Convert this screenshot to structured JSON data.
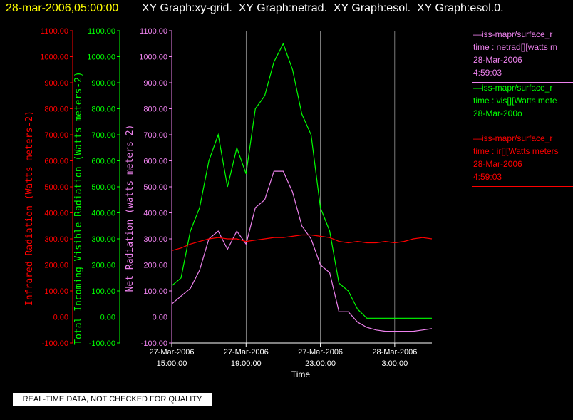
{
  "header": {
    "timestamp": "28-mar-2006,05:00:00",
    "title": "XY Graph:xy-grid.  XY Graph:netrad.  XY Graph:esol.  XY Graph:esol.0.",
    "timestamp_color": "#ffff00",
    "title_color": "#ffffff"
  },
  "legend": [
    {
      "lines": [
        "—iss-mapr/surface_r",
        "time : netrad[][watts m",
        "28-Mar-2006",
        "4:59:03"
      ],
      "color": "#ee82ee"
    },
    {
      "lines": [
        "—iss-mapr/surface_r",
        "time : vis[][Watts mete",
        "28-Mar-200o"
      ],
      "color": "#00ff00"
    },
    {
      "lines": [
        "—iss-mapr/surface_r",
        "time : ir[][Watts meters",
        "28-Mar-2006",
        "4:59:03"
      ],
      "color": "#ff0000"
    }
  ],
  "notice": "REAL-TIME DATA, NOT CHECKED FOR QUALITY",
  "chart_data": {
    "type": "line",
    "xlabel": "Time",
    "x_ticks": [
      {
        "value": 15,
        "label": [
          "27-Mar-2006",
          "15:00:00"
        ]
      },
      {
        "value": 19,
        "label": [
          "27-Mar-2006",
          "19:00:00"
        ]
      },
      {
        "value": 23,
        "label": [
          "27-Mar-2006",
          "23:00:00"
        ]
      },
      {
        "value": 27,
        "label": [
          "28-Mar-2006",
          "3:00:00"
        ]
      }
    ],
    "xlim": [
      15,
      29
    ],
    "grid": "vertical",
    "axes": [
      {
        "id": "ir",
        "ylabel": "Infrared Radiation (Watts meters-2)",
        "color": "#ff0000",
        "ylim": [
          -100,
          1100
        ]
      },
      {
        "id": "vis",
        "ylabel": "Total Incoming Visible Radiation (Watts meters-2)",
        "color": "#00ff00",
        "ylim": [
          -100,
          1100
        ]
      },
      {
        "id": "net",
        "ylabel": "Net Radiation (watts meters-2)",
        "color": "#ee82ee",
        "ylim": [
          -100,
          1100
        ]
      }
    ],
    "y_ticks": [
      "-100.00",
      "0.00",
      "100.00",
      "200.00",
      "300.00",
      "400.00",
      "500.00",
      "600.00",
      "700.00",
      "800.00",
      "900.00",
      "1000.00",
      "1100.00"
    ],
    "series": [
      {
        "axis": "vis",
        "color": "#00ff00",
        "x": [
          15.0,
          15.5,
          16.0,
          16.5,
          17.0,
          17.5,
          18.0,
          18.5,
          19.0,
          19.5,
          20.0,
          20.5,
          21.0,
          21.5,
          22.0,
          22.5,
          23.0,
          23.5,
          24.0,
          24.5,
          25.0,
          25.5,
          26.0,
          26.5,
          27.0,
          27.5,
          28.0,
          28.5,
          29.0
        ],
        "values": [
          120,
          150,
          330,
          420,
          600,
          700,
          500,
          650,
          550,
          800,
          850,
          980,
          1050,
          950,
          780,
          700,
          420,
          330,
          130,
          100,
          30,
          -5,
          -5,
          -5,
          -5,
          -5,
          -5,
          -5,
          -5
        ]
      },
      {
        "axis": "net",
        "color": "#ee82ee",
        "x": [
          15.0,
          15.5,
          16.0,
          16.5,
          17.0,
          17.5,
          18.0,
          18.5,
          19.0,
          19.5,
          20.0,
          20.5,
          21.0,
          21.5,
          22.0,
          22.5,
          23.0,
          23.5,
          24.0,
          24.5,
          25.0,
          25.5,
          26.0,
          26.5,
          27.0,
          27.5,
          28.0,
          28.5,
          29.0
        ],
        "values": [
          50,
          80,
          110,
          180,
          300,
          330,
          260,
          330,
          280,
          420,
          450,
          560,
          560,
          480,
          350,
          300,
          200,
          170,
          20,
          20,
          -20,
          -40,
          -50,
          -55,
          -55,
          -55,
          -55,
          -50,
          -45
        ]
      },
      {
        "axis": "ir",
        "color": "#ff0000",
        "x": [
          15.0,
          15.5,
          16.0,
          16.5,
          17.0,
          17.5,
          18.0,
          18.5,
          19.0,
          19.5,
          20.0,
          20.5,
          21.0,
          21.5,
          22.0,
          22.5,
          23.0,
          23.5,
          24.0,
          24.5,
          25.0,
          25.5,
          26.0,
          26.5,
          27.0,
          27.5,
          28.0,
          28.5,
          29.0
        ],
        "values": [
          255,
          265,
          280,
          290,
          300,
          305,
          300,
          300,
          290,
          295,
          300,
          305,
          305,
          310,
          315,
          315,
          310,
          305,
          290,
          285,
          290,
          285,
          285,
          290,
          285,
          290,
          300,
          305,
          300
        ]
      }
    ]
  }
}
